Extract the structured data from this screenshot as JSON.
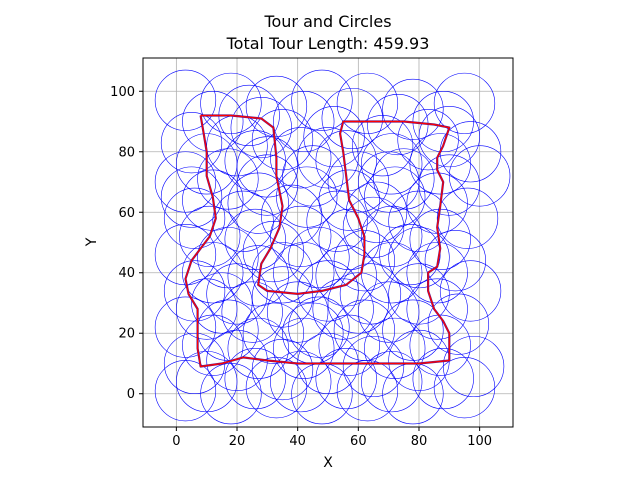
{
  "chart_data": {
    "type": "scatter",
    "title": "Tour and Circles",
    "subtitle": "Total Tour Length: 459.93",
    "xlabel": "X",
    "ylabel": "Y",
    "xlim": [
      -11,
      111
    ],
    "ylim": [
      -11,
      111
    ],
    "xticks": [
      0,
      20,
      40,
      60,
      80,
      100
    ],
    "yticks": [
      0,
      20,
      40,
      60,
      80,
      100
    ],
    "grid": true,
    "circle_color": "#0000ff",
    "tour_color": "#ff0000",
    "tour_path_color": "#5b1b8f",
    "circle_radius": 10,
    "circle_centers": [
      [
        3,
        97
      ],
      [
        18,
        96
      ],
      [
        33,
        95
      ],
      [
        48,
        97
      ],
      [
        63,
        96
      ],
      [
        78,
        94
      ],
      [
        95,
        96
      ],
      [
        5,
        83
      ],
      [
        20,
        82
      ],
      [
        35,
        84
      ],
      [
        52,
        85
      ],
      [
        68,
        82
      ],
      [
        83,
        84
      ],
      [
        97,
        80
      ],
      [
        3,
        70
      ],
      [
        17,
        71
      ],
      [
        30,
        69
      ],
      [
        45,
        72
      ],
      [
        60,
        70
      ],
      [
        75,
        71
      ],
      [
        90,
        69
      ],
      [
        100,
        72
      ],
      [
        6,
        58
      ],
      [
        22,
        57
      ],
      [
        38,
        59
      ],
      [
        53,
        57
      ],
      [
        66,
        60
      ],
      [
        80,
        57
      ],
      [
        96,
        58
      ],
      [
        3,
        46
      ],
      [
        17,
        45
      ],
      [
        32,
        47
      ],
      [
        47,
        45
      ],
      [
        62,
        44
      ],
      [
        77,
        46
      ],
      [
        92,
        44
      ],
      [
        6,
        34
      ],
      [
        20,
        33
      ],
      [
        35,
        32
      ],
      [
        50,
        34
      ],
      [
        64,
        33
      ],
      [
        80,
        33
      ],
      [
        97,
        34
      ],
      [
        3,
        22
      ],
      [
        17,
        21
      ],
      [
        32,
        20
      ],
      [
        47,
        22
      ],
      [
        62,
        21
      ],
      [
        78,
        21
      ],
      [
        93,
        23
      ],
      [
        6,
        10
      ],
      [
        20,
        11
      ],
      [
        35,
        8
      ],
      [
        50,
        10
      ],
      [
        65,
        9
      ],
      [
        80,
        11
      ],
      [
        98,
        9
      ],
      [
        3,
        1
      ],
      [
        18,
        0
      ],
      [
        33,
        2
      ],
      [
        48,
        0
      ],
      [
        63,
        1
      ],
      [
        78,
        0
      ],
      [
        95,
        2
      ],
      [
        12,
        90
      ],
      [
        28,
        88
      ],
      [
        42,
        90
      ],
      [
        58,
        91
      ],
      [
        73,
        89
      ],
      [
        88,
        90
      ],
      [
        10,
        76
      ],
      [
        26,
        77
      ],
      [
        41,
        78
      ],
      [
        56,
        77
      ],
      [
        71,
        76
      ],
      [
        87,
        76
      ],
      [
        12,
        64
      ],
      [
        27,
        63
      ],
      [
        43,
        65
      ],
      [
        57,
        64
      ],
      [
        72,
        65
      ],
      [
        86,
        63
      ],
      [
        11,
        52
      ],
      [
        26,
        51
      ],
      [
        41,
        52
      ],
      [
        57,
        51
      ],
      [
        71,
        52
      ],
      [
        87,
        51
      ],
      [
        12,
        40
      ],
      [
        27,
        39
      ],
      [
        42,
        40
      ],
      [
        56,
        39
      ],
      [
        71,
        40
      ],
      [
        86,
        40
      ],
      [
        10,
        28
      ],
      [
        25,
        27
      ],
      [
        40,
        27
      ],
      [
        55,
        28
      ],
      [
        70,
        27
      ],
      [
        86,
        28
      ],
      [
        12,
        16
      ],
      [
        27,
        15
      ],
      [
        42,
        15
      ],
      [
        57,
        16
      ],
      [
        72,
        15
      ],
      [
        87,
        16
      ],
      [
        10,
        4
      ],
      [
        26,
        5
      ],
      [
        41,
        4
      ],
      [
        56,
        5
      ],
      [
        71,
        4
      ],
      [
        88,
        5
      ],
      [
        24,
        92
      ],
      [
        50,
        78
      ],
      [
        65,
        55
      ],
      [
        35,
        40
      ],
      [
        80,
        45
      ],
      [
        15,
        30
      ],
      [
        45,
        20
      ],
      [
        70,
        70
      ],
      [
        90,
        85
      ],
      [
        5,
        65
      ],
      [
        60,
        30
      ],
      [
        30,
        75
      ]
    ],
    "tour": [
      [
        8,
        92
      ],
      [
        18,
        92
      ],
      [
        28,
        91
      ],
      [
        32,
        88
      ],
      [
        33,
        78
      ],
      [
        33,
        72
      ],
      [
        35,
        62
      ],
      [
        34,
        55
      ],
      [
        31,
        48
      ],
      [
        28,
        43
      ],
      [
        27,
        36
      ],
      [
        30,
        34
      ],
      [
        40,
        33
      ],
      [
        48,
        34
      ],
      [
        56,
        36
      ],
      [
        61,
        40
      ],
      [
        62,
        46
      ],
      [
        62,
        52
      ],
      [
        60,
        58
      ],
      [
        57,
        64
      ],
      [
        56,
        72
      ],
      [
        55,
        80
      ],
      [
        54,
        86
      ],
      [
        55,
        90
      ],
      [
        65,
        90
      ],
      [
        75,
        90
      ],
      [
        85,
        89
      ],
      [
        90,
        88
      ],
      [
        88,
        82
      ],
      [
        86,
        78
      ],
      [
        86,
        74
      ],
      [
        88,
        70
      ],
      [
        87,
        62
      ],
      [
        86,
        55
      ],
      [
        87,
        48
      ],
      [
        86,
        42
      ],
      [
        83,
        40
      ],
      [
        83,
        34
      ],
      [
        85,
        28
      ],
      [
        88,
        24
      ],
      [
        90,
        20
      ],
      [
        90,
        11
      ],
      [
        80,
        10
      ],
      [
        70,
        10
      ],
      [
        60,
        10
      ],
      [
        50,
        10
      ],
      [
        40,
        10
      ],
      [
        30,
        11
      ],
      [
        22,
        12
      ],
      [
        15,
        10
      ],
      [
        8,
        9
      ],
      [
        7,
        15
      ],
      [
        7,
        22
      ],
      [
        7,
        28
      ],
      [
        4,
        33
      ],
      [
        3,
        38
      ],
      [
        5,
        44
      ],
      [
        8,
        48
      ],
      [
        11,
        52
      ],
      [
        13,
        58
      ],
      [
        12,
        65
      ],
      [
        10,
        72
      ],
      [
        10,
        80
      ],
      [
        9,
        86
      ],
      [
        8,
        92
      ]
    ]
  }
}
